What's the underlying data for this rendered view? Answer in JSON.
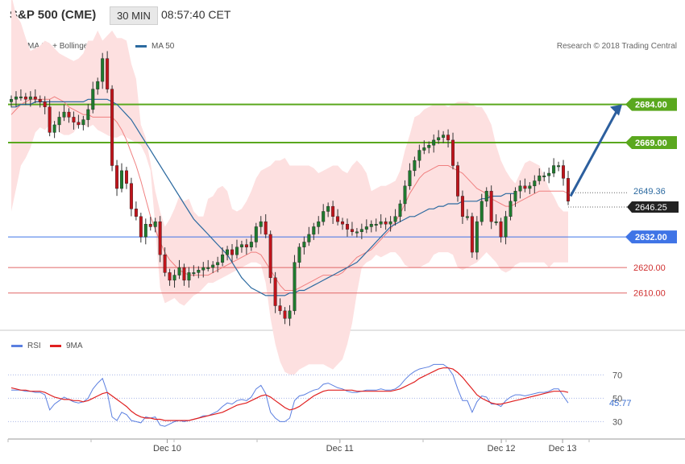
{
  "header": {
    "title": "S&P 500 (CME)",
    "timeframe": "30 MIN",
    "time": "08:57:40 CET"
  },
  "legend": {
    "ma20_label": "MA 20 + Bollinger Bands",
    "ma50_label": "MA 50",
    "ma20_color": "#f08080",
    "ma50_color": "#2c6aa0"
  },
  "credit": "Research © 2018 Trading Central",
  "rsi_legend": {
    "rsi_label": "RSI",
    "ma_label": "9MA",
    "rsi_color": "#5b7fe0",
    "ma_color": "#e02020"
  },
  "chart_data": [
    {
      "type": "candlestick",
      "title": "S&P 500 (CME)",
      "x_labels": [
        "Dec 10",
        "Dec 11",
        "Dec 12",
        "Dec 13"
      ],
      "ylim": [
        2596,
        2706
      ],
      "current_price": "2646.25",
      "last_value_label": "2649.36",
      "levels": [
        {
          "value": 2684.0,
          "label": "2684.00",
          "color": "#5aa81e",
          "kind": "resistance"
        },
        {
          "value": 2669.0,
          "label": "2669.00",
          "color": "#5aa81e",
          "kind": "resistance"
        },
        {
          "value": 2632.0,
          "label": "2632.00",
          "color": "#3f74e6",
          "kind": "pivot"
        },
        {
          "value": 2620.0,
          "label": "2620.00",
          "color": "#e06666",
          "kind": "support"
        },
        {
          "value": 2610.0,
          "label": "2610.00",
          "color": "#e06666",
          "kind": "support"
        }
      ],
      "candles_close": [
        2686,
        2687,
        2687,
        2686,
        2687,
        2686,
        2685,
        2683,
        2673,
        2676,
        2679,
        2681,
        2679,
        2677,
        2676,
        2678,
        2682,
        2690,
        2693,
        2702,
        2690,
        2660,
        2651,
        2658,
        2653,
        2643,
        2640,
        2632,
        2637,
        2636,
        2638,
        2625,
        2618,
        2615,
        2617,
        2620,
        2615,
        2618,
        2618,
        2619,
        2620,
        2620,
        2621,
        2622,
        2625,
        2627,
        2625,
        2628,
        2629,
        2628,
        2630,
        2636,
        2638,
        2633,
        2616,
        2605,
        2603,
        2600,
        2603,
        2622,
        2628,
        2630,
        2633,
        2636,
        2638,
        2642,
        2644,
        2640,
        2638,
        2637,
        2635,
        2634,
        2634,
        2635,
        2636,
        2637,
        2637,
        2638,
        2637,
        2638,
        2640,
        2645,
        2652,
        2658,
        2662,
        2666,
        2667,
        2668,
        2670,
        2671,
        2672,
        2670,
        2660,
        2648,
        2640,
        2640,
        2626,
        2638,
        2646,
        2650,
        2638,
        2638,
        2632,
        2640,
        2646,
        2650,
        2652,
        2651,
        2652,
        2654,
        2656,
        2656,
        2657,
        2660,
        2660,
        2655,
        2646
      ],
      "bollinger_upper_approx": [
        2727,
        2719,
        2716,
        2710,
        2705,
        2706,
        2707,
        2709,
        2708,
        2706,
        2704,
        2703,
        2702,
        2701,
        2702,
        2704,
        2709,
        2709,
        2713,
        2709,
        2711,
        2713,
        2710,
        2710,
        2709,
        2700,
        2694,
        2676,
        2671,
        2661,
        2650,
        2642,
        2636,
        2639,
        2643,
        2648,
        2646,
        2647,
        2642,
        2640,
        2640,
        2647,
        2648,
        2651,
        2652,
        2650,
        2643,
        2642,
        2643,
        2646,
        2650,
        2655,
        2658,
        2659,
        2660,
        2662,
        2662,
        2663,
        2660,
        2660,
        2660,
        2660,
        2660,
        2659,
        2657,
        2658,
        2659,
        2660,
        2660,
        2658,
        2657,
        2660,
        2662,
        2660,
        2657,
        2650,
        2651,
        2652,
        2652,
        2653,
        2654,
        2658,
        2666,
        2672,
        2679,
        2680,
        2682,
        2683,
        2684,
        2684,
        2684,
        2683,
        2684,
        2685,
        2685,
        2685,
        2684,
        2683,
        2683,
        2680,
        2676,
        2668,
        2662,
        2658,
        2655,
        2653,
        2657,
        2661,
        2662,
        2661,
        2660,
        2656,
        2651,
        2648,
        2644,
        2642,
        2642
      ],
      "bollinger_lower_approx": [
        2642,
        2651,
        2660,
        2663,
        2667,
        2673,
        2675,
        2674,
        2676,
        2677,
        2673,
        2672,
        2672,
        2673,
        2676,
        2676,
        2675,
        2676,
        2674,
        2673,
        2672,
        2671,
        2671,
        2672,
        2671,
        2670,
        2669,
        2668,
        2664,
        2658,
        2636,
        2612,
        2606,
        2607,
        2608,
        2606,
        2605,
        2607,
        2609,
        2610,
        2612,
        2614,
        2614,
        2615,
        2616,
        2617,
        2618,
        2619,
        2620,
        2621,
        2622,
        2622,
        2621,
        2614,
        2600,
        2590,
        2583,
        2579,
        2578,
        2578,
        2580,
        2581,
        2582,
        2582,
        2582,
        2582,
        2581,
        2580,
        2582,
        2584,
        2590,
        2598,
        2610,
        2620,
        2622,
        2623,
        2625,
        2624,
        2625,
        2626,
        2626,
        2624,
        2621,
        2620,
        2620,
        2620,
        2621,
        2622,
        2625,
        2626,
        2626,
        2626,
        2625,
        2620,
        2619,
        2620,
        2621,
        2622,
        2624,
        2626,
        2624,
        2622,
        2619,
        2618,
        2619,
        2621,
        2622,
        2622,
        2622,
        2622,
        2622,
        2622,
        2620,
        2622,
        2622,
        2622,
        2622
      ],
      "ma20_approx": [
        2680,
        2682,
        2684,
        2685,
        2686,
        2686,
        2686,
        2686,
        2686,
        2687,
        2686,
        2685,
        2683,
        2682,
        2681,
        2680,
        2680,
        2679,
        2679,
        2679,
        2679,
        2679,
        2677,
        2674,
        2670,
        2665,
        2660,
        2654,
        2647,
        2640,
        2635,
        2630,
        2626,
        2623,
        2621,
        2619,
        2618,
        2617,
        2617,
        2617,
        2617,
        2617,
        2618,
        2619,
        2620,
        2621,
        2622,
        2623,
        2624,
        2625,
        2626,
        2626,
        2625,
        2622,
        2619,
        2616,
        2613,
        2611,
        2611,
        2611,
        2612,
        2613,
        2614,
        2615,
        2616,
        2617,
        2617,
        2617,
        2617,
        2618,
        2620,
        2622,
        2624,
        2625,
        2626,
        2627,
        2629,
        2631,
        2633,
        2635,
        2638,
        2641,
        2645,
        2649,
        2652,
        2655,
        2657,
        2658,
        2659,
        2660,
        2660,
        2660,
        2659,
        2658,
        2657,
        2655,
        2653,
        2651,
        2650,
        2649,
        2647,
        2646,
        2645,
        2644,
        2644,
        2645,
        2646,
        2647,
        2648,
        2649,
        2650,
        2650,
        2650,
        2650,
        2650,
        2650,
        2649
      ],
      "ma50_approx": [
        2683,
        2683,
        2684,
        2684,
        2684,
        2685,
        2685,
        2685,
        2685,
        2685,
        2685,
        2685,
        2685,
        2685,
        2685,
        2685,
        2686,
        2686,
        2686,
        2686,
        2686,
        2685,
        2684,
        2682,
        2680,
        2678,
        2675,
        2672,
        2669,
        2666,
        2663,
        2660,
        2657,
        2654,
        2651,
        2648,
        2645,
        2642,
        2639,
        2637,
        2635,
        2633,
        2631,
        2629,
        2627,
        2625,
        2622,
        2619,
        2616,
        2614,
        2612,
        2611,
        2610,
        2609,
        2609,
        2609,
        2609,
        2609,
        2610,
        2610,
        2611,
        2611,
        2612,
        2613,
        2614,
        2615,
        2616,
        2617,
        2618,
        2619,
        2620,
        2621,
        2622,
        2624,
        2626,
        2628,
        2630,
        2632,
        2634,
        2636,
        2637,
        2638,
        2639,
        2640,
        2640,
        2641,
        2642,
        2643,
        2643,
        2644,
        2644,
        2645,
        2645,
        2645,
        2646,
        2646,
        2646,
        2646,
        2647,
        2647,
        2648,
        2648,
        2648,
        2649,
        2649,
        2649
      ]
    },
    {
      "type": "line",
      "title": "RSI",
      "x_labels": [
        "Dec 10",
        "Dec 11",
        "Dec 12",
        "Dec 13"
      ],
      "ylim": [
        22,
        82
      ],
      "y_ticks": [
        30,
        50,
        70
      ],
      "current_value": "45.77",
      "series": [
        {
          "name": "RSI",
          "values": [
            57,
            57,
            57,
            56,
            56,
            55,
            55,
            53,
            40,
            45,
            48,
            51,
            49,
            47,
            46,
            47,
            50,
            58,
            63,
            67,
            55,
            34,
            31,
            38,
            36,
            31,
            30,
            29,
            34,
            33,
            34,
            27,
            26,
            28,
            30,
            31,
            30,
            31,
            32,
            33,
            35,
            35,
            37,
            39,
            43,
            46,
            45,
            48,
            49,
            48,
            51,
            58,
            61,
            54,
            38,
            33,
            30,
            30,
            33,
            48,
            52,
            53,
            55,
            57,
            58,
            62,
            63,
            61,
            59,
            58,
            56,
            55,
            55,
            56,
            57,
            57,
            57,
            58,
            57,
            57,
            58,
            61,
            66,
            70,
            73,
            75,
            76,
            77,
            79,
            79,
            79,
            76,
            70,
            58,
            48,
            48,
            38,
            47,
            52,
            51,
            45,
            45,
            43,
            48,
            51,
            53,
            53,
            52,
            53,
            54,
            55,
            55,
            56,
            58,
            58,
            52,
            46
          ]
        },
        {
          "name": "9MA",
          "values": [
            59,
            58,
            57,
            57,
            56,
            56,
            56,
            55,
            53,
            51,
            50,
            49,
            49,
            48,
            48,
            47,
            48,
            50,
            52,
            54,
            55,
            52,
            49,
            46,
            43,
            39,
            36,
            34,
            33,
            33,
            32,
            32,
            31,
            31,
            31,
            31,
            31,
            31,
            32,
            33,
            34,
            35,
            36,
            37,
            38,
            40,
            42,
            44,
            45,
            46,
            48,
            50,
            52,
            53,
            51,
            48,
            45,
            42,
            40,
            41,
            43,
            46,
            49,
            52,
            54,
            56,
            57,
            57,
            57,
            57,
            57,
            57,
            56,
            56,
            56,
            56,
            56,
            56,
            56,
            56,
            57,
            58,
            60,
            62,
            64,
            67,
            69,
            71,
            73,
            75,
            76,
            76,
            75,
            72,
            68,
            63,
            58,
            53,
            50,
            48,
            46,
            45,
            45,
            46,
            47,
            48,
            49,
            50,
            51,
            52,
            53,
            54,
            55,
            56,
            56,
            56,
            55
          ]
        }
      ]
    }
  ]
}
